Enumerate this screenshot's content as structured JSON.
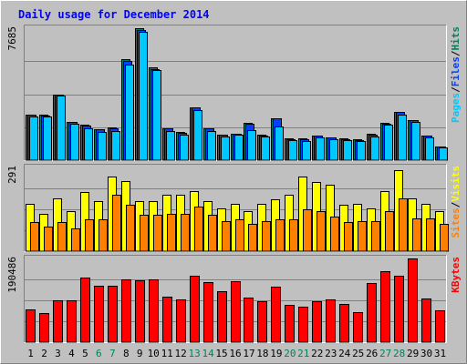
{
  "chart_data": {
    "type": "bar",
    "title": "Daily usage for December 2014",
    "categories": [
      "1",
      "2",
      "3",
      "4",
      "5",
      "6",
      "7",
      "8",
      "9",
      "10",
      "11",
      "12",
      "13",
      "14",
      "15",
      "16",
      "17",
      "18",
      "19",
      "20",
      "21",
      "22",
      "23",
      "24",
      "25",
      "26",
      "27",
      "28",
      "29",
      "30",
      "31"
    ],
    "weekend_days": [
      "6",
      "7",
      "13",
      "14",
      "20",
      "21",
      "27",
      "28"
    ],
    "colors": {
      "background": "#c0c0c0",
      "hits": "#00805c",
      "files": "#0040ff",
      "pages": "#00c8ff",
      "visits": "#ffff00",
      "sites": "#ff8000",
      "kbytes": "#ff0000",
      "title": "#0000ff",
      "weekend_label": "#00805c",
      "weekday_label": "#000000"
    },
    "panels": [
      {
        "name": "requests",
        "axis_max_label": "7685",
        "ymax": 7685,
        "legend": [
          "Pages",
          "/",
          "Files",
          "/",
          "Hits"
        ],
        "legend_colors": [
          "#00c8ff",
          "#000000",
          "#0040ff",
          "#000000",
          "#00805c"
        ],
        "series": [
          {
            "name": "Hits",
            "values": [
              2660,
              2640,
              3820,
              2240,
              2060,
              1800,
              1900,
              5900,
              7685,
              5400,
              1850,
              1620,
              3090,
              1850,
              1480,
              1550,
              2160,
              1460,
              2450,
              1250,
              1250,
              1450,
              1320,
              1250,
              1200,
              1520,
              2150,
              2830,
              2330,
              1450,
              800
            ]
          },
          {
            "name": "Files",
            "values": [
              2640,
              2620,
              3800,
              2220,
              2040,
              1780,
              1880,
              5800,
              7600,
              5300,
              1830,
              1600,
              3070,
              1830,
              1460,
              1530,
              2140,
              1440,
              2430,
              1230,
              1230,
              1430,
              1300,
              1230,
              1180,
              1500,
              2130,
              2810,
              2310,
              1430,
              780
            ]
          },
          {
            "name": "Pages",
            "values": [
              2560,
              2560,
              3740,
              2100,
              1880,
              1620,
              1690,
              5580,
              7480,
              5230,
              1690,
              1500,
              2910,
              1690,
              1360,
              1460,
              1770,
              1360,
              1980,
              1170,
              1130,
              1310,
              1240,
              1140,
              1100,
              1400,
              2060,
              2630,
              2240,
              1320,
              760
            ]
          }
        ]
      },
      {
        "name": "visitors",
        "axis_max_label": "291",
        "ymax": 291,
        "legend": [
          "Sites",
          "/",
          "Visits"
        ],
        "legend_colors": [
          "#ff8000",
          "#000000",
          "#ffff00"
        ],
        "series": [
          {
            "name": "Visits",
            "values": [
              165,
              130,
              185,
              140,
              205,
              175,
              260,
              245,
              175,
              175,
              195,
              195,
              210,
              175,
              150,
              165,
              140,
              165,
              180,
              195,
              260,
              240,
              230,
              160,
              165,
              150,
              210,
              280,
              185,
              165,
              140
            ]
          },
          {
            "name": "Sites",
            "values": [
              100,
              85,
              100,
              80,
              110,
              110,
              195,
              160,
              125,
              125,
              130,
              130,
              155,
              125,
              105,
              110,
              95,
              105,
              110,
              110,
              145,
              140,
              120,
              100,
              105,
              105,
              140,
              185,
              115,
              115,
              95
            ]
          }
        ]
      },
      {
        "name": "kbytes",
        "axis_max_label": "190486",
        "ymax": 190486,
        "legend": [
          "KBytes"
        ],
        "legend_colors": [
          "#ff0000"
        ],
        "series": [
          {
            "name": "KBytes",
            "values": [
              74000,
              66000,
              96000,
              96000,
              148000,
              128000,
              128000,
              143000,
              140000,
              143000,
              103000,
              97000,
              152000,
              136000,
              115000,
              139000,
              101000,
              94000,
              127000,
              84000,
              81000,
              94000,
              98000,
              87000,
              69000,
              134000,
              162000,
              152000,
              190486,
              100000,
              72000
            ]
          }
        ]
      }
    ]
  }
}
